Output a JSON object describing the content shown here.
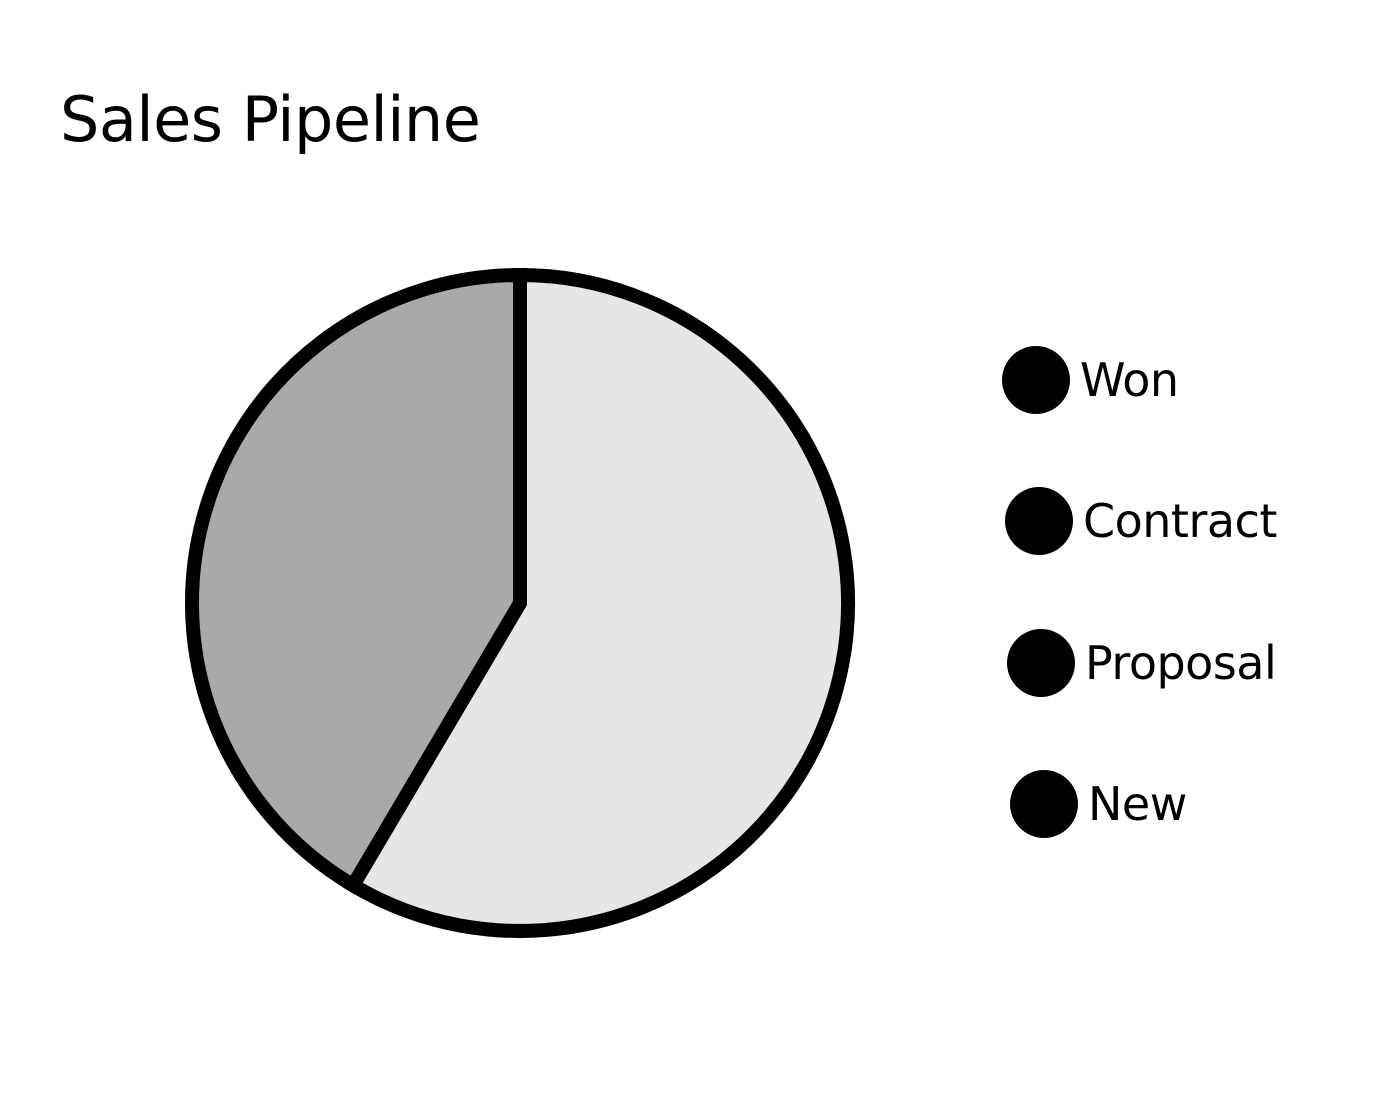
{
  "chart_data": {
    "type": "pie",
    "title": "Sales Pipeline",
    "categories": [
      "Won",
      "Contract",
      "Proposal",
      "New"
    ],
    "series": [
      {
        "values": [
          58.5,
          0,
          0,
          41.5
        ]
      }
    ],
    "colors": [
      "#e6e6e6",
      "#e6e6e6",
      "#e6e6e6",
      "#a9a9a9"
    ],
    "stroke_color": "#000000",
    "legend": {
      "position": "right",
      "marker_color": "#000000",
      "entries": [
        "Won",
        "Contract",
        "Proposal",
        "New"
      ]
    }
  }
}
